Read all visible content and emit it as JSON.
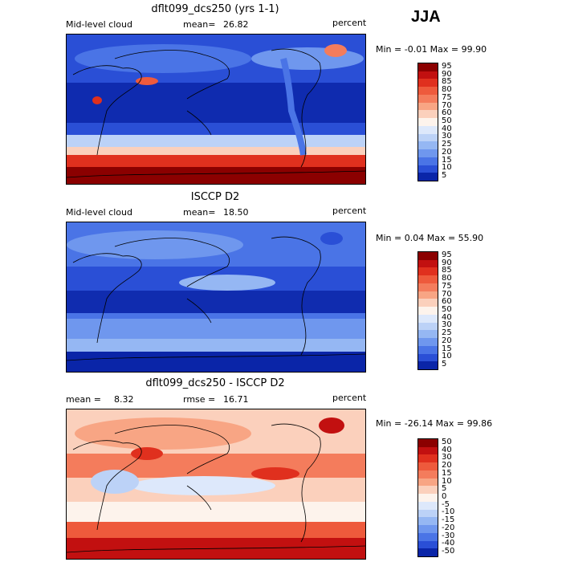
{
  "season": "JJA",
  "panels": [
    {
      "title": "dflt099_dcs250 (yrs 1-1)",
      "left_label": "Mid-level cloud",
      "mid_label": "mean=",
      "mid_value": "26.82",
      "units": "percent",
      "minmax": "Min =   -0.01  Max =   99.90",
      "colorbar_labels": [
        "95",
        "90",
        "85",
        "80",
        "75",
        "70",
        "60",
        "50",
        "40",
        "30",
        "25",
        "20",
        "15",
        "10",
        "5"
      ],
      "colors": [
        "#8b0000",
        "#c21010",
        "#e0301e",
        "#ee5a3c",
        "#f47c5c",
        "#f8a584",
        "#fbd0bc",
        "#fdf3ec",
        "#dde8fb",
        "#bcd2f7",
        "#95b7f3",
        "#6f97ee",
        "#4a74e6",
        "#2a4fd6",
        "#0a25a8"
      ]
    },
    {
      "title": "ISCCP D2",
      "left_label": "Mid-level cloud",
      "mid_label": "mean=",
      "mid_value": "18.50",
      "units": "percent",
      "minmax": "Min =   0.04  Max =   55.90",
      "colorbar_labels": [
        "95",
        "90",
        "85",
        "80",
        "75",
        "70",
        "60",
        "50",
        "40",
        "30",
        "25",
        "20",
        "15",
        "10",
        "5"
      ],
      "colors": [
        "#8b0000",
        "#c21010",
        "#e0301e",
        "#ee5a3c",
        "#f47c5c",
        "#f8a584",
        "#fbd0bc",
        "#fdf3ec",
        "#dde8fb",
        "#bcd2f7",
        "#95b7f3",
        "#6f97ee",
        "#4a74e6",
        "#2a4fd6",
        "#0a25a8"
      ]
    },
    {
      "title": "dflt099_dcs250 - ISCCP D2",
      "left_label": "mean =",
      "left_value": "8.32",
      "mid_label": "rmse =",
      "mid_value": "16.71",
      "units": "percent",
      "minmax": "Min =  -26.14  Max =   99.86",
      "colorbar_labels": [
        "50",
        "40",
        "30",
        "20",
        "15",
        "10",
        "5",
        "0",
        "-5",
        "-10",
        "-15",
        "-20",
        "-30",
        "-40",
        "-50"
      ],
      "colors": [
        "#8b0000",
        "#c21010",
        "#e0301e",
        "#ee5a3c",
        "#f47c5c",
        "#f8a584",
        "#fbd0bc",
        "#fdf3ec",
        "#dde8fb",
        "#bcd2f7",
        "#95b7f3",
        "#6f97ee",
        "#4a74e6",
        "#2a4fd6",
        "#0a25a8"
      ]
    }
  ],
  "chart_data": [
    {
      "type": "heatmap",
      "title": "dflt099_dcs250 (yrs 1-1)",
      "variable": "Mid-level cloud",
      "units": "percent",
      "mean": 26.82,
      "min": -0.01,
      "max": 99.9,
      "contour_levels": [
        5,
        10,
        15,
        20,
        25,
        30,
        40,
        50,
        60,
        70,
        75,
        80,
        85,
        90,
        95
      ]
    },
    {
      "type": "heatmap",
      "title": "ISCCP D2",
      "variable": "Mid-level cloud",
      "units": "percent",
      "mean": 18.5,
      "min": 0.04,
      "max": 55.9,
      "contour_levels": [
        5,
        10,
        15,
        20,
        25,
        30,
        40,
        50,
        60,
        70,
        75,
        80,
        85,
        90,
        95
      ]
    },
    {
      "type": "heatmap",
      "title": "dflt099_dcs250 - ISCCP D2",
      "units": "percent",
      "mean": 8.32,
      "rmse": 16.71,
      "min": -26.14,
      "max": 99.86,
      "contour_levels": [
        -50,
        -40,
        -30,
        -20,
        -15,
        -10,
        -5,
        0,
        5,
        10,
        15,
        20,
        30,
        40,
        50
      ]
    }
  ]
}
